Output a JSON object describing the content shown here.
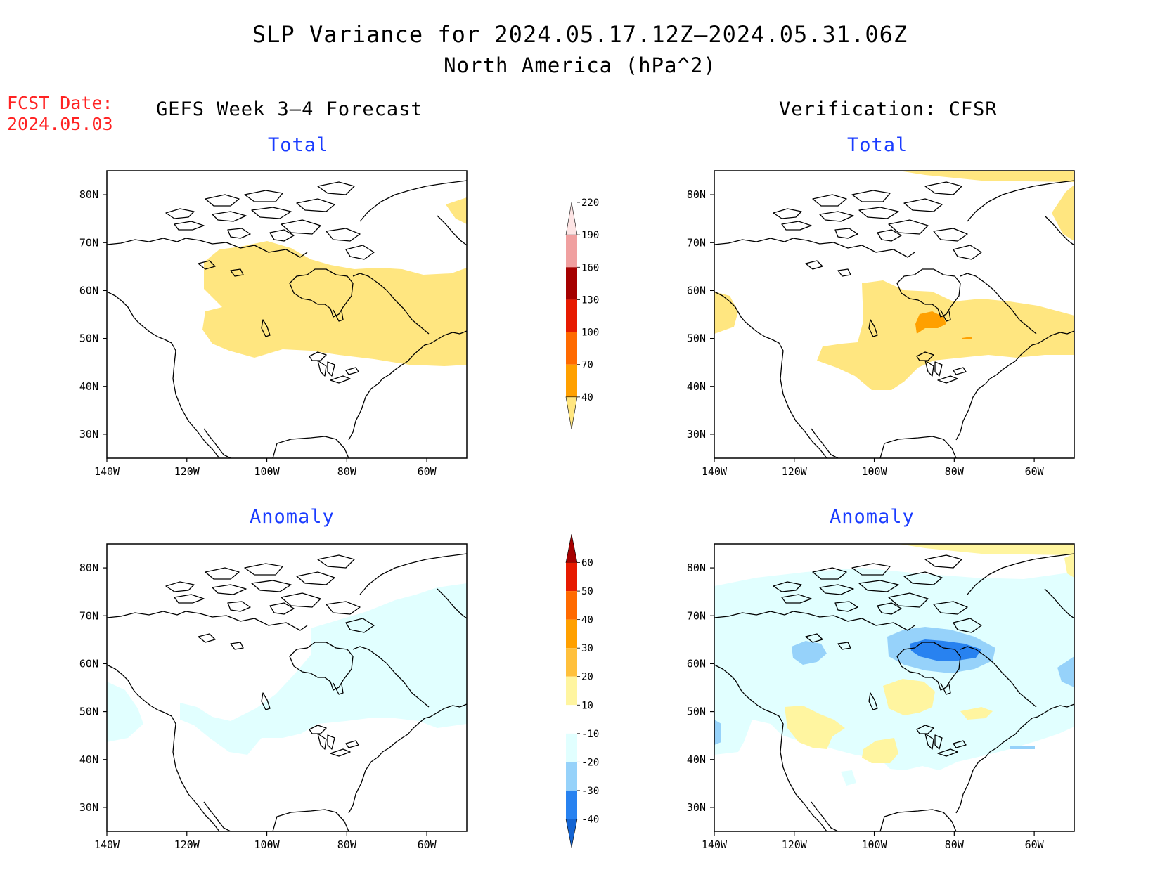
{
  "title": {
    "line1": "SLP Variance for 2024.05.17.12Z–2024.05.31.06Z",
    "line2": "North America (hPa^2)"
  },
  "fcst_date": {
    "label": "FCST Date:",
    "value": "2024.05.03"
  },
  "columns": {
    "left": "GEFS Week 3–4 Forecast",
    "right": "Verification: CFSR"
  },
  "panel_titles": {
    "total": "Total",
    "anomaly": "Anomaly"
  },
  "map_axes": {
    "lon_labels": [
      "140W",
      "120W",
      "100W",
      "80W",
      "60W"
    ],
    "lat_labels": [
      "80N",
      "70N",
      "60N",
      "50N",
      "40N",
      "30N"
    ]
  },
  "total_colorbar": {
    "labels": [
      "40",
      "70",
      "100",
      "130",
      "160",
      "190",
      "220"
    ],
    "colors": [
      "#ffe680",
      "#ffa000",
      "#ff6a00",
      "#e61a00",
      "#a50000",
      "#f0a0a0",
      "#fde4e4"
    ]
  },
  "anomaly_colorbar": {
    "labels": [
      "-40",
      "-30",
      "-20",
      "-10",
      "10",
      "20",
      "30",
      "40",
      "50",
      "60"
    ],
    "colors": [
      "#1464d2",
      "#2882f0",
      "#96d2fa",
      "#e1ffff",
      "#ffffff",
      "#fff5a0",
      "#ffc03c",
      "#ffa000",
      "#ff6a00",
      "#e61a00",
      "#a50000"
    ]
  },
  "colors": {
    "title_blue": "#1a3cff",
    "fcst_red": "#ff2222",
    "shade_yellow": "#ffe680",
    "shade_orange": "#ffa000",
    "light_cyan": "#e1ffff",
    "light_blue": "#96d2fa",
    "mid_blue": "#2882f0",
    "pale_yellow": "#fff5a0"
  }
}
